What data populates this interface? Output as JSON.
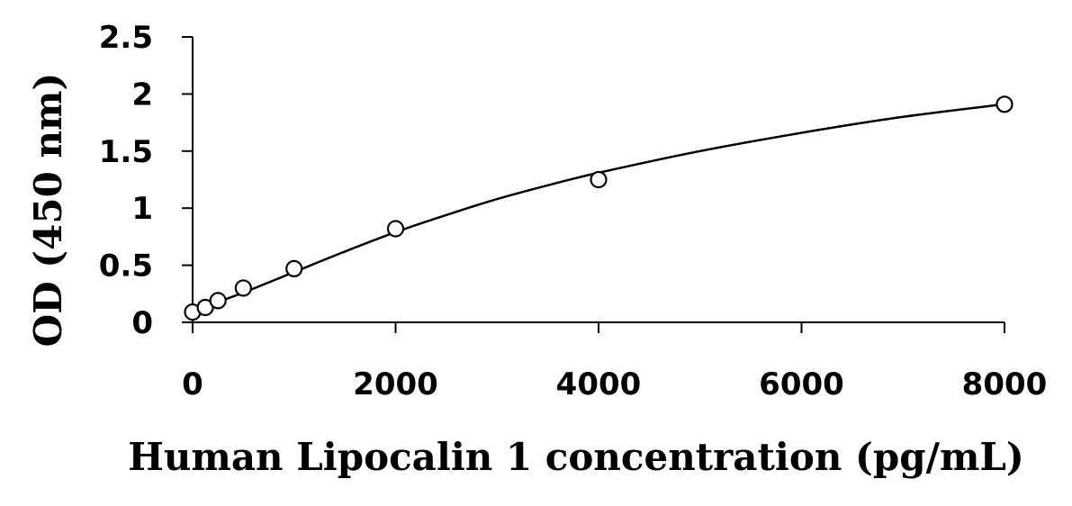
{
  "chart_data": {
    "type": "scatter",
    "title": "",
    "xlabel": "Human Lipocalin 1 concentration (pg/mL)",
    "ylabel": "OD (450 nm)",
    "xlim": [
      0,
      8000
    ],
    "ylim": [
      0,
      2.5
    ],
    "x_ticks": [
      "0",
      "2000",
      "4000",
      "6000",
      "8000"
    ],
    "y_ticks": [
      "0",
      "0.5",
      "1",
      "1.5",
      "2",
      "2.5"
    ],
    "grid": false,
    "legend": "none",
    "series": [
      {
        "marker": "open-circle",
        "x": [
          0,
          125,
          250,
          500,
          1000,
          2000,
          4000,
          8000
        ],
        "y": [
          0.09,
          0.13,
          0.19,
          0.3,
          0.47,
          0.82,
          1.25,
          1.91
        ]
      }
    ],
    "fit_curve": {
      "type": "smooth",
      "x": [
        0,
        125,
        250,
        500,
        1000,
        1500,
        2000,
        2500,
        3000,
        3500,
        4000,
        5000,
        6000,
        7000,
        8000
      ],
      "y": [
        0.09,
        0.14,
        0.18,
        0.26,
        0.44,
        0.62,
        0.79,
        0.94,
        1.08,
        1.2,
        1.31,
        1.5,
        1.66,
        1.8,
        1.91
      ]
    },
    "colors": {
      "axis": "#000000",
      "marker": "#000000",
      "curve": "#000000"
    }
  }
}
